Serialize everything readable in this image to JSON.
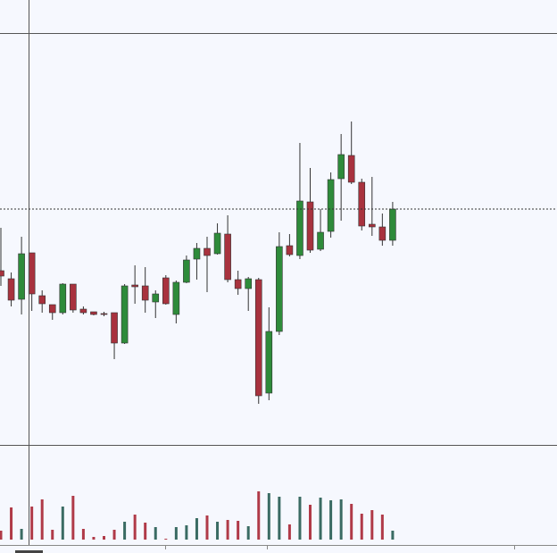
{
  "chart_data": {
    "type": "candlestick",
    "up_color": "#2e8b3a",
    "down_color": "#a8323e",
    "volume_up_color": "#3a6b63",
    "volume_down_color": "#b03a48",
    "ylim": [
      0,
      460
    ],
    "volume_ylim": [
      0,
      106
    ],
    "open": [
      195,
      186,
      163,
      215,
      167,
      157,
      148,
      180,
      152,
      149,
      147,
      148,
      114,
      179,
      178,
      160,
      187,
      146,
      182,
      208,
      220,
      214,
      236,
      185,
      175,
      185,
      58,
      127,
      223,
      212,
      272,
      219,
      239,
      298,
      324,
      294,
      247,
      244,
      229
    ],
    "high": [
      243,
      193,
      233,
      215,
      173,
      157,
      181,
      180,
      155,
      149,
      149,
      148,
      180,
      201,
      199,
      173,
      190,
      184,
      212,
      226,
      233,
      248,
      257,
      195,
      188,
      187,
      154,
      238,
      236,
      338,
      310,
      264,
      305,
      348,
      362,
      298,
      300,
      259,
      272
    ],
    "low": [
      178,
      155,
      146,
      150,
      148,
      140,
      146,
      148,
      146,
      145,
      144,
      96,
      113,
      158,
      148,
      142,
      157,
      136,
      181,
      185,
      171,
      213,
      182,
      168,
      150,
      46,
      50,
      123,
      211,
      208,
      215,
      217,
      232,
      251,
      292,
      240,
      234,
      223,
      223
    ],
    "close": [
      189,
      162,
      214,
      169,
      158,
      148,
      180,
      151,
      148,
      146,
      146,
      114,
      178,
      177,
      162,
      169,
      158,
      182,
      207,
      220,
      212,
      237,
      185,
      175,
      186,
      55,
      127,
      222,
      213,
      273,
      218,
      238,
      297,
      325,
      294,
      245,
      244,
      229,
      264
    ],
    "volume": [
      10,
      36,
      12,
      37,
      45,
      11,
      37,
      49,
      12,
      3,
      4,
      11,
      20,
      28,
      19,
      14,
      1,
      14,
      16,
      24,
      27,
      20,
      22,
      21,
      15,
      54,
      52,
      48,
      17,
      48,
      39,
      47,
      44,
      45,
      40,
      29,
      33,
      28,
      10
    ]
  }
}
